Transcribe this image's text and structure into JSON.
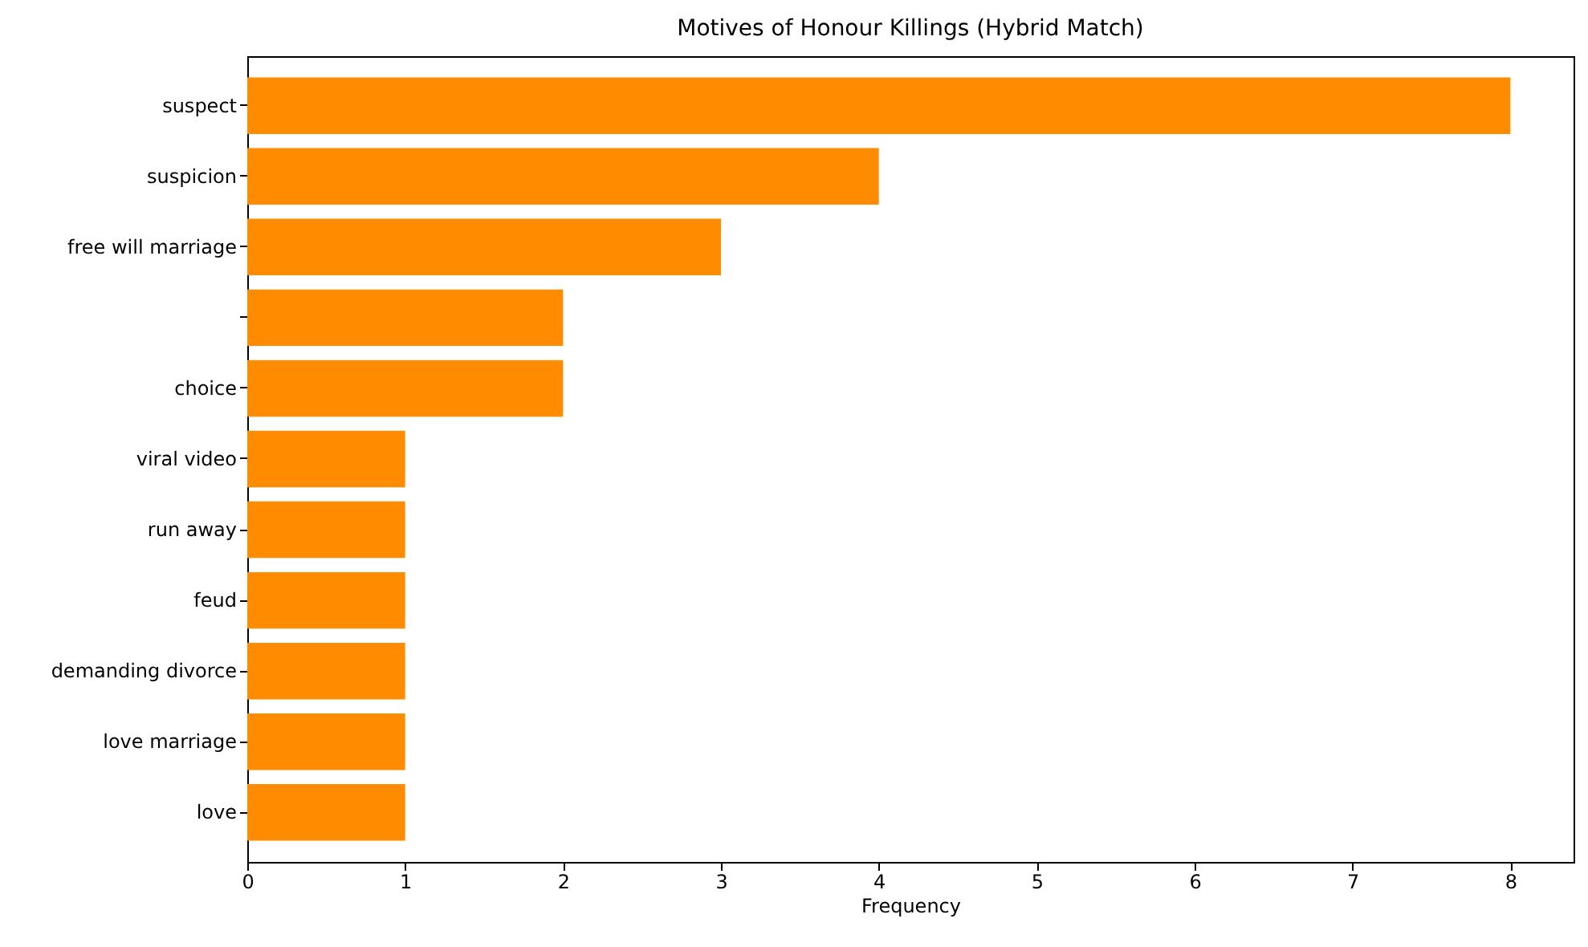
{
  "chart_data": {
    "type": "bar",
    "orientation": "horizontal",
    "title": "Motives of Honour Killings (Hybrid Match)",
    "xlabel": "Frequency",
    "categories": [
      "suspect",
      "suspicion",
      "free will marriage",
      null,
      "choice",
      "viral video",
      "run away",
      "feud",
      "demanding divorce",
      "love marriage",
      "love"
    ],
    "values": [
      8,
      4,
      3,
      2,
      2,
      1,
      1,
      1,
      1,
      1,
      1
    ],
    "color": "#ff8c00",
    "xlim": [
      0,
      8.4
    ],
    "xticks": [
      0,
      1,
      2,
      3,
      4,
      5,
      6,
      7,
      8
    ],
    "grid": false
  }
}
